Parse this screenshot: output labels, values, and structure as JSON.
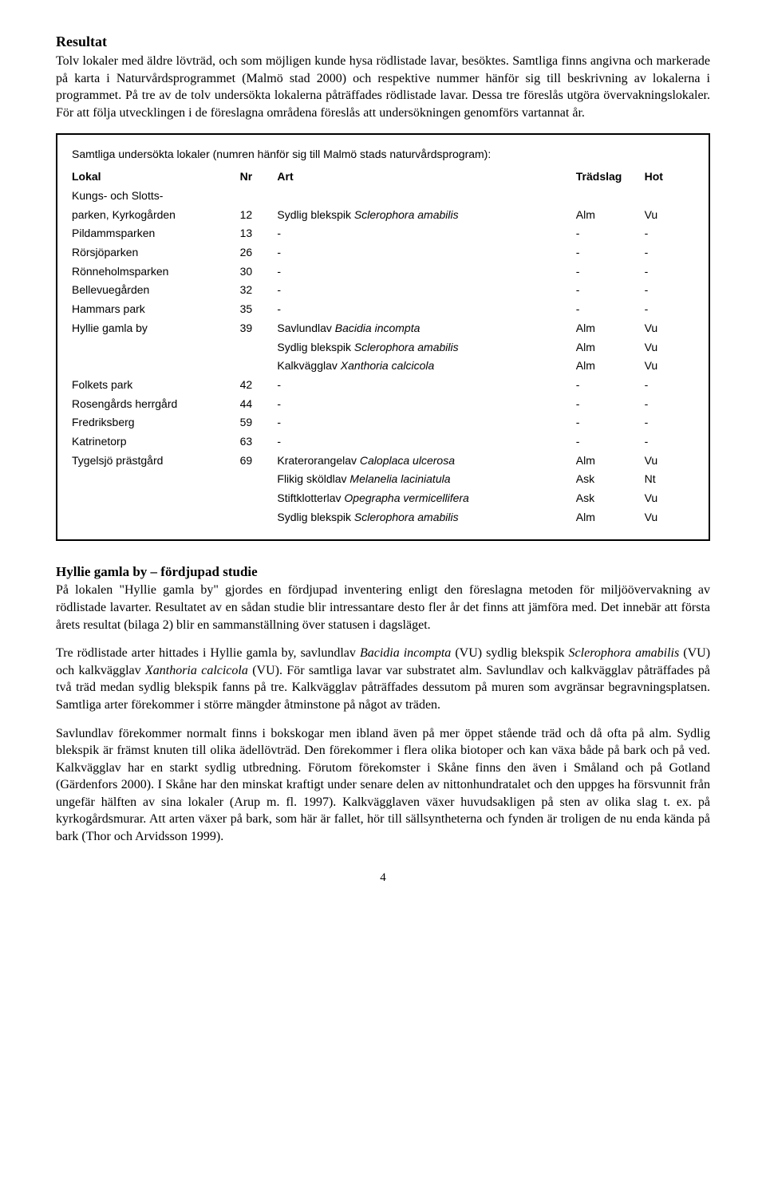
{
  "resultat": {
    "heading": "Resultat",
    "para1": "Tolv lokaler med äldre lövträd, och som möjligen kunde hysa rödlistade lavar, besöktes. Samtliga finns angivna och markerade på karta i Naturvårdsprogrammet (Malmö stad 2000) och respektive nummer hänför sig till beskrivning av lokalerna i programmet. På tre av de tolv undersökta lokalerna påträffades rödlistade lavar. Dessa tre föreslås utgöra övervakningslokaler. För att följa utvecklingen i de föreslagna områdena föreslås att undersökningen genomförs vartannat år."
  },
  "box": {
    "intro": "Samtliga undersökta lokaler (numren hänför sig till Malmö stads naturvårdsprogram):",
    "headers": {
      "lokal": "Lokal",
      "nr": "Nr",
      "art": "Art",
      "tradslag": "Trädslag",
      "hot": "Hot"
    },
    "rows": [
      {
        "lokal": "Kungs- och Slotts-",
        "nr": "",
        "art": "",
        "trad": "",
        "hot": ""
      },
      {
        "lokal": "parken, Kyrkogården",
        "nr": "12",
        "art": "Sydlig blekspik <i>Sclerophora amabilis</i>",
        "trad": "Alm",
        "hot": "Vu"
      },
      {
        "lokal": "Pildammsparken",
        "nr": "13",
        "art": "-",
        "trad": "-",
        "hot": "-"
      },
      {
        "lokal": "Rörsjöparken",
        "nr": "26",
        "art": "-",
        "trad": "-",
        "hot": "-"
      },
      {
        "lokal": "Rönneholmsparken",
        "nr": "30",
        "art": "-",
        "trad": "-",
        "hot": "-"
      },
      {
        "lokal": "Bellevuegården",
        "nr": "32",
        "art": "-",
        "trad": "-",
        "hot": "-"
      },
      {
        "lokal": "Hammars park",
        "nr": "35",
        "art": "-",
        "trad": "-",
        "hot": "-"
      },
      {
        "lokal": "Hyllie gamla by",
        "nr": "39",
        "art": "Savlundlav <i>Bacidia incompta</i>",
        "trad": "Alm",
        "hot": "Vu"
      },
      {
        "lokal": "",
        "nr": "",
        "art": "Sydlig blekspik <i>Sclerophora amabilis</i>",
        "trad": "Alm",
        "hot": "Vu"
      },
      {
        "lokal": "",
        "nr": "",
        "art": "Kalkvägglav <i>Xanthoria calcicola</i>",
        "trad": "Alm",
        "hot": "Vu"
      },
      {
        "lokal": "Folkets park",
        "nr": "42",
        "art": "-",
        "trad": "-",
        "hot": "-"
      },
      {
        "lokal": "Rosengårds herrgård",
        "nr": "44",
        "art": "-",
        "trad": "-",
        "hot": "-"
      },
      {
        "lokal": "Fredriksberg",
        "nr": "59",
        "art": "-",
        "trad": "-",
        "hot": "-"
      },
      {
        "lokal": "Katrinetorp",
        "nr": "63",
        "art": "-",
        "trad": "-",
        "hot": "-"
      },
      {
        "lokal": "Tygelsjö prästgård",
        "nr": "69",
        "art": "Kraterorangelav <i>Caloplaca ulcerosa</i>",
        "trad": "Alm",
        "hot": "Vu"
      },
      {
        "lokal": "",
        "nr": "",
        "art": "Flikig sköldlav <i>Melanelia laciniatula</i>",
        "trad": "Ask",
        "hot": "Nt"
      },
      {
        "lokal": "",
        "nr": "",
        "art": "Stiftklotterlav <i>Opegrapha vermicellifera</i>",
        "trad": "Ask",
        "hot": "Vu"
      },
      {
        "lokal": "",
        "nr": "",
        "art": "Sydlig blekspik <i>Sclerophora amabilis</i>",
        "trad": "Alm",
        "hot": "Vu"
      }
    ]
  },
  "hyllie": {
    "heading": "Hyllie gamla by – fördjupad studie",
    "para1": "På lokalen \"Hyllie gamla by\" gjordes en fördjupad inventering enligt den föreslagna metoden för miljöövervakning av rödlistade lavarter. Resultatet av en sådan studie blir intressantare desto fler år det finns att jämföra med. Det innebär att första årets resultat (bilaga 2) blir en sammanställning över statusen i dagsläget.",
    "para2": "Tre rödlistade arter hittades i Hyllie gamla by, savlundlav <i>Bacidia incompta</i> (VU) sydlig blekspik <i>Sclerophora amabilis</i> (VU) och kalkvägglav <i>Xanthoria calcicola</i> (VU). För samtliga lavar var substratet alm. Savlundlav och kalkvägglav påträffades på två träd medan sydlig blekspik fanns på tre. Kalkvägglav påträffades dessutom på muren som avgränsar begravningsplatsen. Samtliga arter förekommer i större mängder åtminstone på något av träden.",
    "para3": "Savlundlav förekommer normalt finns i bokskogar men ibland även på mer öppet stående träd och då ofta på alm. Sydlig blekspik är främst knuten till olika ädellövträd. Den förekommer i flera olika biotoper och kan växa både på bark och på ved. Kalkvägglav har en starkt sydlig utbredning. Förutom förekomster i Skåne finns den även i Småland och på Gotland (Gärdenfors 2000). I Skåne har den minskat kraftigt under senare delen av nittonhundratalet och den uppges ha försvunnit från ungefär hälften av sina lokaler (Arup m. fl. 1997). Kalkvägglaven växer huvudsakligen på sten av olika slag t. ex. på kyrkogårdsmurar. Att arten växer på bark, som här är fallet, hör till sällsyntheterna och fynden är troligen de nu enda kända på bark (Thor och Arvidsson 1999)."
  },
  "pagenum": "4"
}
